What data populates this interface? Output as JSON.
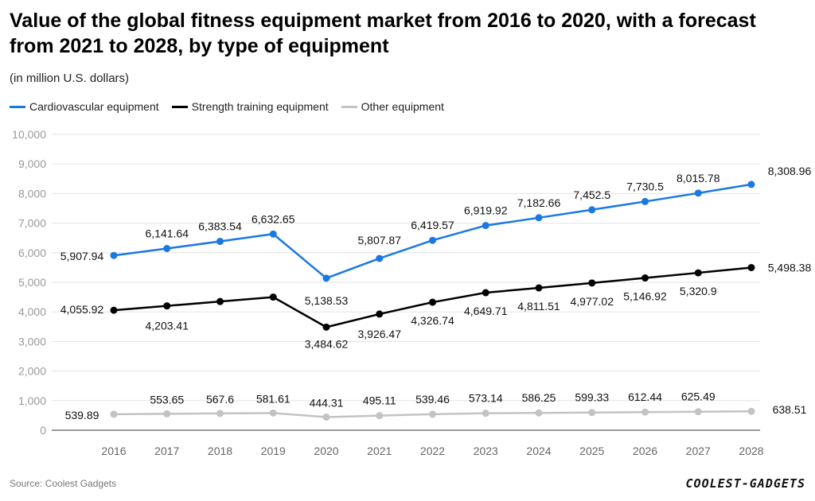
{
  "chart_data": {
    "type": "line",
    "title": "Value of the global fitness equipment market from 2016 to 2020, with a forecast from 2021 to 2028, by type of equipment",
    "subtitle": "(in million U.S. dollars)",
    "categories": [
      "2016",
      "2017",
      "2018",
      "2019",
      "2020",
      "2021",
      "2022",
      "2023",
      "2024",
      "2025",
      "2026",
      "2027",
      "2028"
    ],
    "series": [
      {
        "name": "Cardiovascular equipment",
        "color": "#1a78e5",
        "values": [
          5907.94,
          6141.64,
          6383.54,
          6632.65,
          5138.53,
          5807.87,
          6419.57,
          6919.92,
          7182.66,
          7452.5,
          7730.5,
          8015.78,
          8308.96
        ],
        "labels": [
          "5,907.94",
          "6,141.64",
          "6,383.54",
          "6,632.65",
          "5,138.53",
          "5,807.87",
          "6,419.57",
          "6,919.92",
          "7,182.66",
          "7,452.5",
          "7,730.5",
          "8,015.78",
          "8,308.96"
        ]
      },
      {
        "name": "Strength training equipment",
        "color": "#000000",
        "values": [
          4055.92,
          4203.41,
          4350,
          4500,
          3484.62,
          3926.47,
          4326.74,
          4649.71,
          4811.51,
          4977.02,
          5146.92,
          5320.9,
          5498.38
        ],
        "labels": [
          "4,055.92",
          "4,203.41",
          "",
          "",
          "3,484.62",
          "3,926.47",
          "4,326.74",
          "4,649.71",
          "4,811.51",
          "4,977.02",
          "5,146.92",
          "5,320.9",
          "5,498.38"
        ]
      },
      {
        "name": "Other equipment",
        "color": "#c3c3c3",
        "values": [
          539.89,
          553.65,
          567.6,
          581.61,
          444.31,
          495.11,
          539.46,
          573.14,
          586.25,
          599.33,
          612.44,
          625.49,
          638.51
        ],
        "labels": [
          "539.89",
          "553.65",
          "567.6",
          "581.61",
          "444.31",
          "495.11",
          "539.46",
          "573.14",
          "586.25",
          "599.33",
          "612.44",
          "625.49",
          "638.51"
        ]
      }
    ],
    "ylim": [
      0,
      10000
    ],
    "yticks": [
      0,
      1000,
      2000,
      3000,
      4000,
      5000,
      6000,
      7000,
      8000,
      9000,
      10000
    ],
    "ytick_labels": [
      "0",
      "1,000",
      "2,000",
      "3,000",
      "4,000",
      "5,000",
      "6,000",
      "7,000",
      "8,000",
      "9,000",
      "10,000"
    ],
    "grid": true,
    "legend_position": "top-left"
  },
  "footer": {
    "source": "Source: Coolest Gadgets",
    "brand": "COOLEST-GADGETS"
  }
}
